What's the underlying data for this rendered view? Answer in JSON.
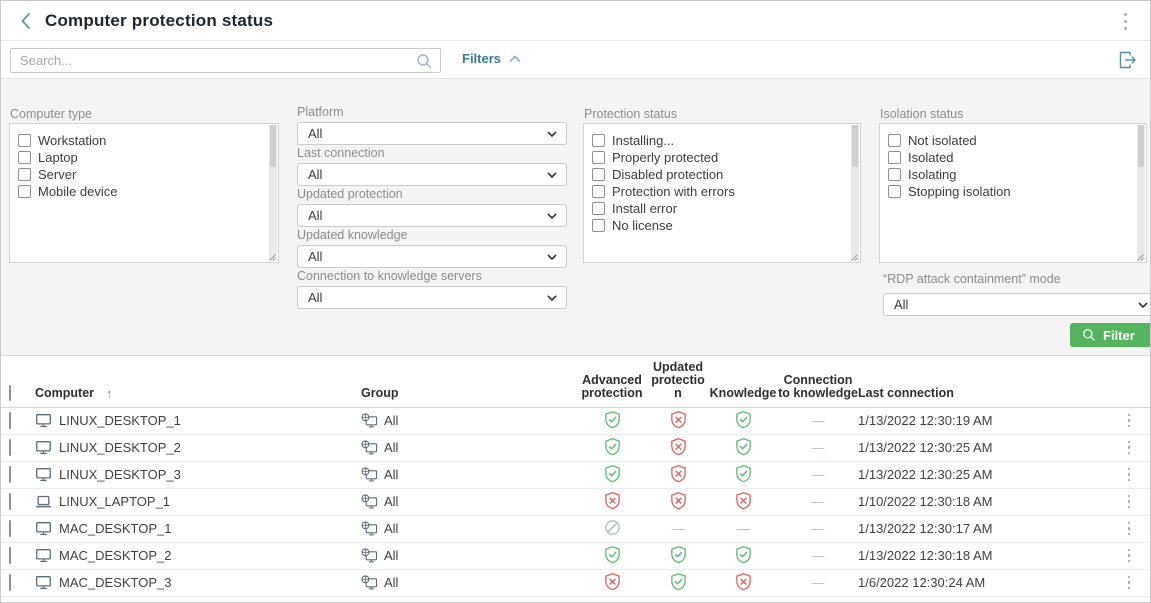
{
  "header": {
    "title": "Computer protection status"
  },
  "toolbar": {
    "search_placeholder": "Search...",
    "filters_label": "Filters"
  },
  "filters": {
    "computer_type": {
      "label": "Computer type",
      "options": [
        "Workstation",
        "Laptop",
        "Server",
        "Mobile device"
      ]
    },
    "dropdowns": [
      {
        "label": "Platform",
        "value": "All"
      },
      {
        "label": "Last connection",
        "value": "All"
      },
      {
        "label": "Updated protection",
        "value": "All"
      },
      {
        "label": "Updated knowledge",
        "value": "All"
      },
      {
        "label": "Connection to knowledge servers",
        "value": "All"
      }
    ],
    "protection_status": {
      "label": "Protection status",
      "options": [
        "Installing...",
        "Properly protected",
        "Disabled protection",
        "Protection with errors",
        "Install error",
        "No license"
      ]
    },
    "isolation_status": {
      "label": "Isolation status",
      "options": [
        "Not isolated",
        "Isolated",
        "Isolating",
        "Stopping isolation"
      ]
    },
    "rdp_mode": {
      "label": "“RDP attack containment” mode",
      "value": "All"
    },
    "filter_button_label": "Filter"
  },
  "table": {
    "columns": [
      "Computer",
      "Group",
      "Advanced protection",
      "Updated protection",
      "Knowledge",
      "Connection to knowledge",
      "Last connection"
    ],
    "sort_column": "Computer",
    "sort_direction": "asc",
    "rows": [
      {
        "name": "LINUX_DESKTOP_1",
        "device": "desktop",
        "group": "All",
        "advanced_protection": "ok",
        "updated_protection": "error",
        "knowledge": "ok",
        "connection_to_knowledge": "none",
        "last_connection": "1/13/2022 12:30:19 AM"
      },
      {
        "name": "LINUX_DESKTOP_2",
        "device": "desktop",
        "group": "All",
        "advanced_protection": "ok",
        "updated_protection": "error",
        "knowledge": "ok",
        "connection_to_knowledge": "none",
        "last_connection": "1/13/2022 12:30:25 AM"
      },
      {
        "name": "LINUX_DESKTOP_3",
        "device": "desktop",
        "group": "All",
        "advanced_protection": "ok",
        "updated_protection": "error",
        "knowledge": "ok",
        "connection_to_knowledge": "none",
        "last_connection": "1/13/2022 12:30:25 AM"
      },
      {
        "name": "LINUX_LAPTOP_1",
        "device": "laptop",
        "group": "All",
        "advanced_protection": "error",
        "updated_protection": "error",
        "knowledge": "error",
        "connection_to_knowledge": "none",
        "last_connection": "1/10/2022 12:30:18 AM"
      },
      {
        "name": "MAC_DESKTOP_1",
        "device": "desktop",
        "group": "All",
        "advanced_protection": "disabled",
        "updated_protection": "none",
        "knowledge": "none",
        "connection_to_knowledge": "none",
        "last_connection": "1/13/2022 12:30:17 AM"
      },
      {
        "name": "MAC_DESKTOP_2",
        "device": "desktop",
        "group": "All",
        "advanced_protection": "ok",
        "updated_protection": "ok",
        "knowledge": "ok",
        "connection_to_knowledge": "none",
        "last_connection": "1/13/2022 12:30:18 AM"
      },
      {
        "name": "MAC_DESKTOP_3",
        "device": "desktop",
        "group": "All",
        "advanced_protection": "error",
        "updated_protection": "ok",
        "knowledge": "error",
        "connection_to_knowledge": "none",
        "last_connection": "1/6/2022 12:30:24 AM"
      }
    ]
  },
  "colors": {
    "teal": "#3a7d8e",
    "green": "#54b45e",
    "ok": "#5cbd77",
    "err": "#e06262",
    "dis": "#adb6c2"
  }
}
